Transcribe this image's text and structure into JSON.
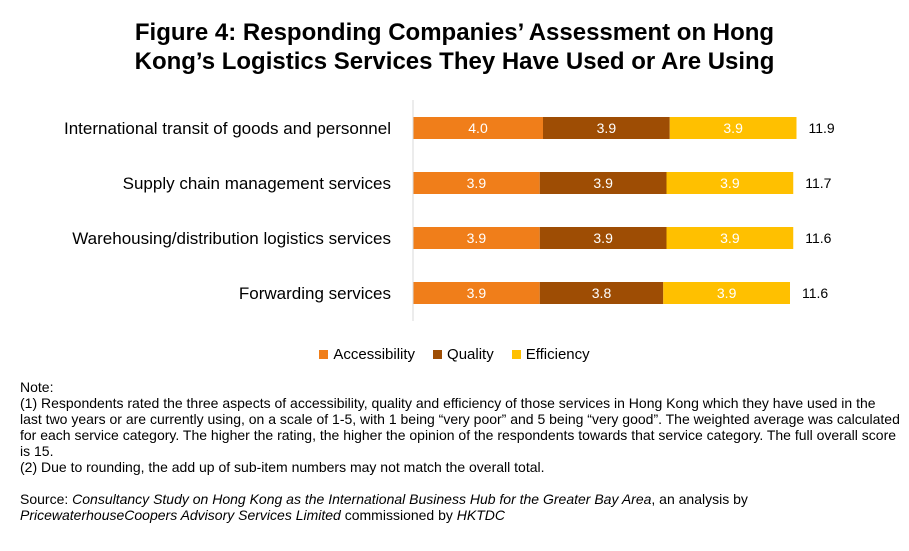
{
  "title": {
    "line1": "Figure 4: Responding Companies’ Assessment on Hong",
    "line2": "Kong’s Logistics Services They Have Used or Are Using"
  },
  "chart_data": {
    "type": "bar",
    "orientation": "horizontal",
    "stacked": true,
    "title": "Figure 4: Responding Companies’ Assessment on Hong Kong’s Logistics Services They Have Used or Are Using",
    "categories": [
      "International transit of goods and personnel",
      "Supply chain management services",
      "Warehousing/distribution logistics services",
      "Forwarding services"
    ],
    "series": [
      {
        "name": "Accessibility",
        "color": "#F07E1A",
        "values": [
          4.0,
          3.9,
          3.9,
          3.9
        ],
        "labels": [
          "4.0",
          "3.9",
          "3.9",
          "3.9"
        ]
      },
      {
        "name": "Quality",
        "color": "#9E4D04",
        "values": [
          3.9,
          3.9,
          3.9,
          3.8
        ],
        "labels": [
          "3.9",
          "3.9",
          "3.9",
          "3.8"
        ]
      },
      {
        "name": "Efficiency",
        "color": "#FFC000",
        "values": [
          3.9,
          3.9,
          3.9,
          3.9
        ],
        "labels": [
          "3.9",
          "3.9",
          "3.9",
          "3.9"
        ]
      }
    ],
    "totals": [
      11.9,
      11.7,
      11.6,
      11.6
    ],
    "total_labels": [
      "11.9",
      "11.7",
      "11.6",
      "11.6"
    ],
    "xlim": [
      0,
      15
    ],
    "legend_position": "bottom",
    "grid": false
  },
  "legend": [
    "Accessibility",
    "Quality",
    "Efficiency"
  ],
  "notes": {
    "heading": "Note:",
    "note1": "(1) Respondents rated the three aspects of accessibility, quality and efficiency of those services in Hong Kong which they have used in the last two years or are currently using, on a scale of 1-5, with 1 being “very poor” and 5 being “very good”. The weighted average was calculated for each service category. The higher the rating, the higher the opinion of the respondents towards that service category. The full overall score is 15.",
    "note2": "(2) Due to rounding, the add up of sub-item numbers may not match the overall total."
  },
  "source": {
    "prefix": "Source: ",
    "study": "Consultancy Study on Hong Kong as the International Business Hub for the Greater Bay Area",
    "mid1": ", an analysis by ",
    "firm": "PricewaterhouseCoopers Advisory Services Limited",
    "mid2": " commissioned by ",
    "org": "HKTDC"
  }
}
